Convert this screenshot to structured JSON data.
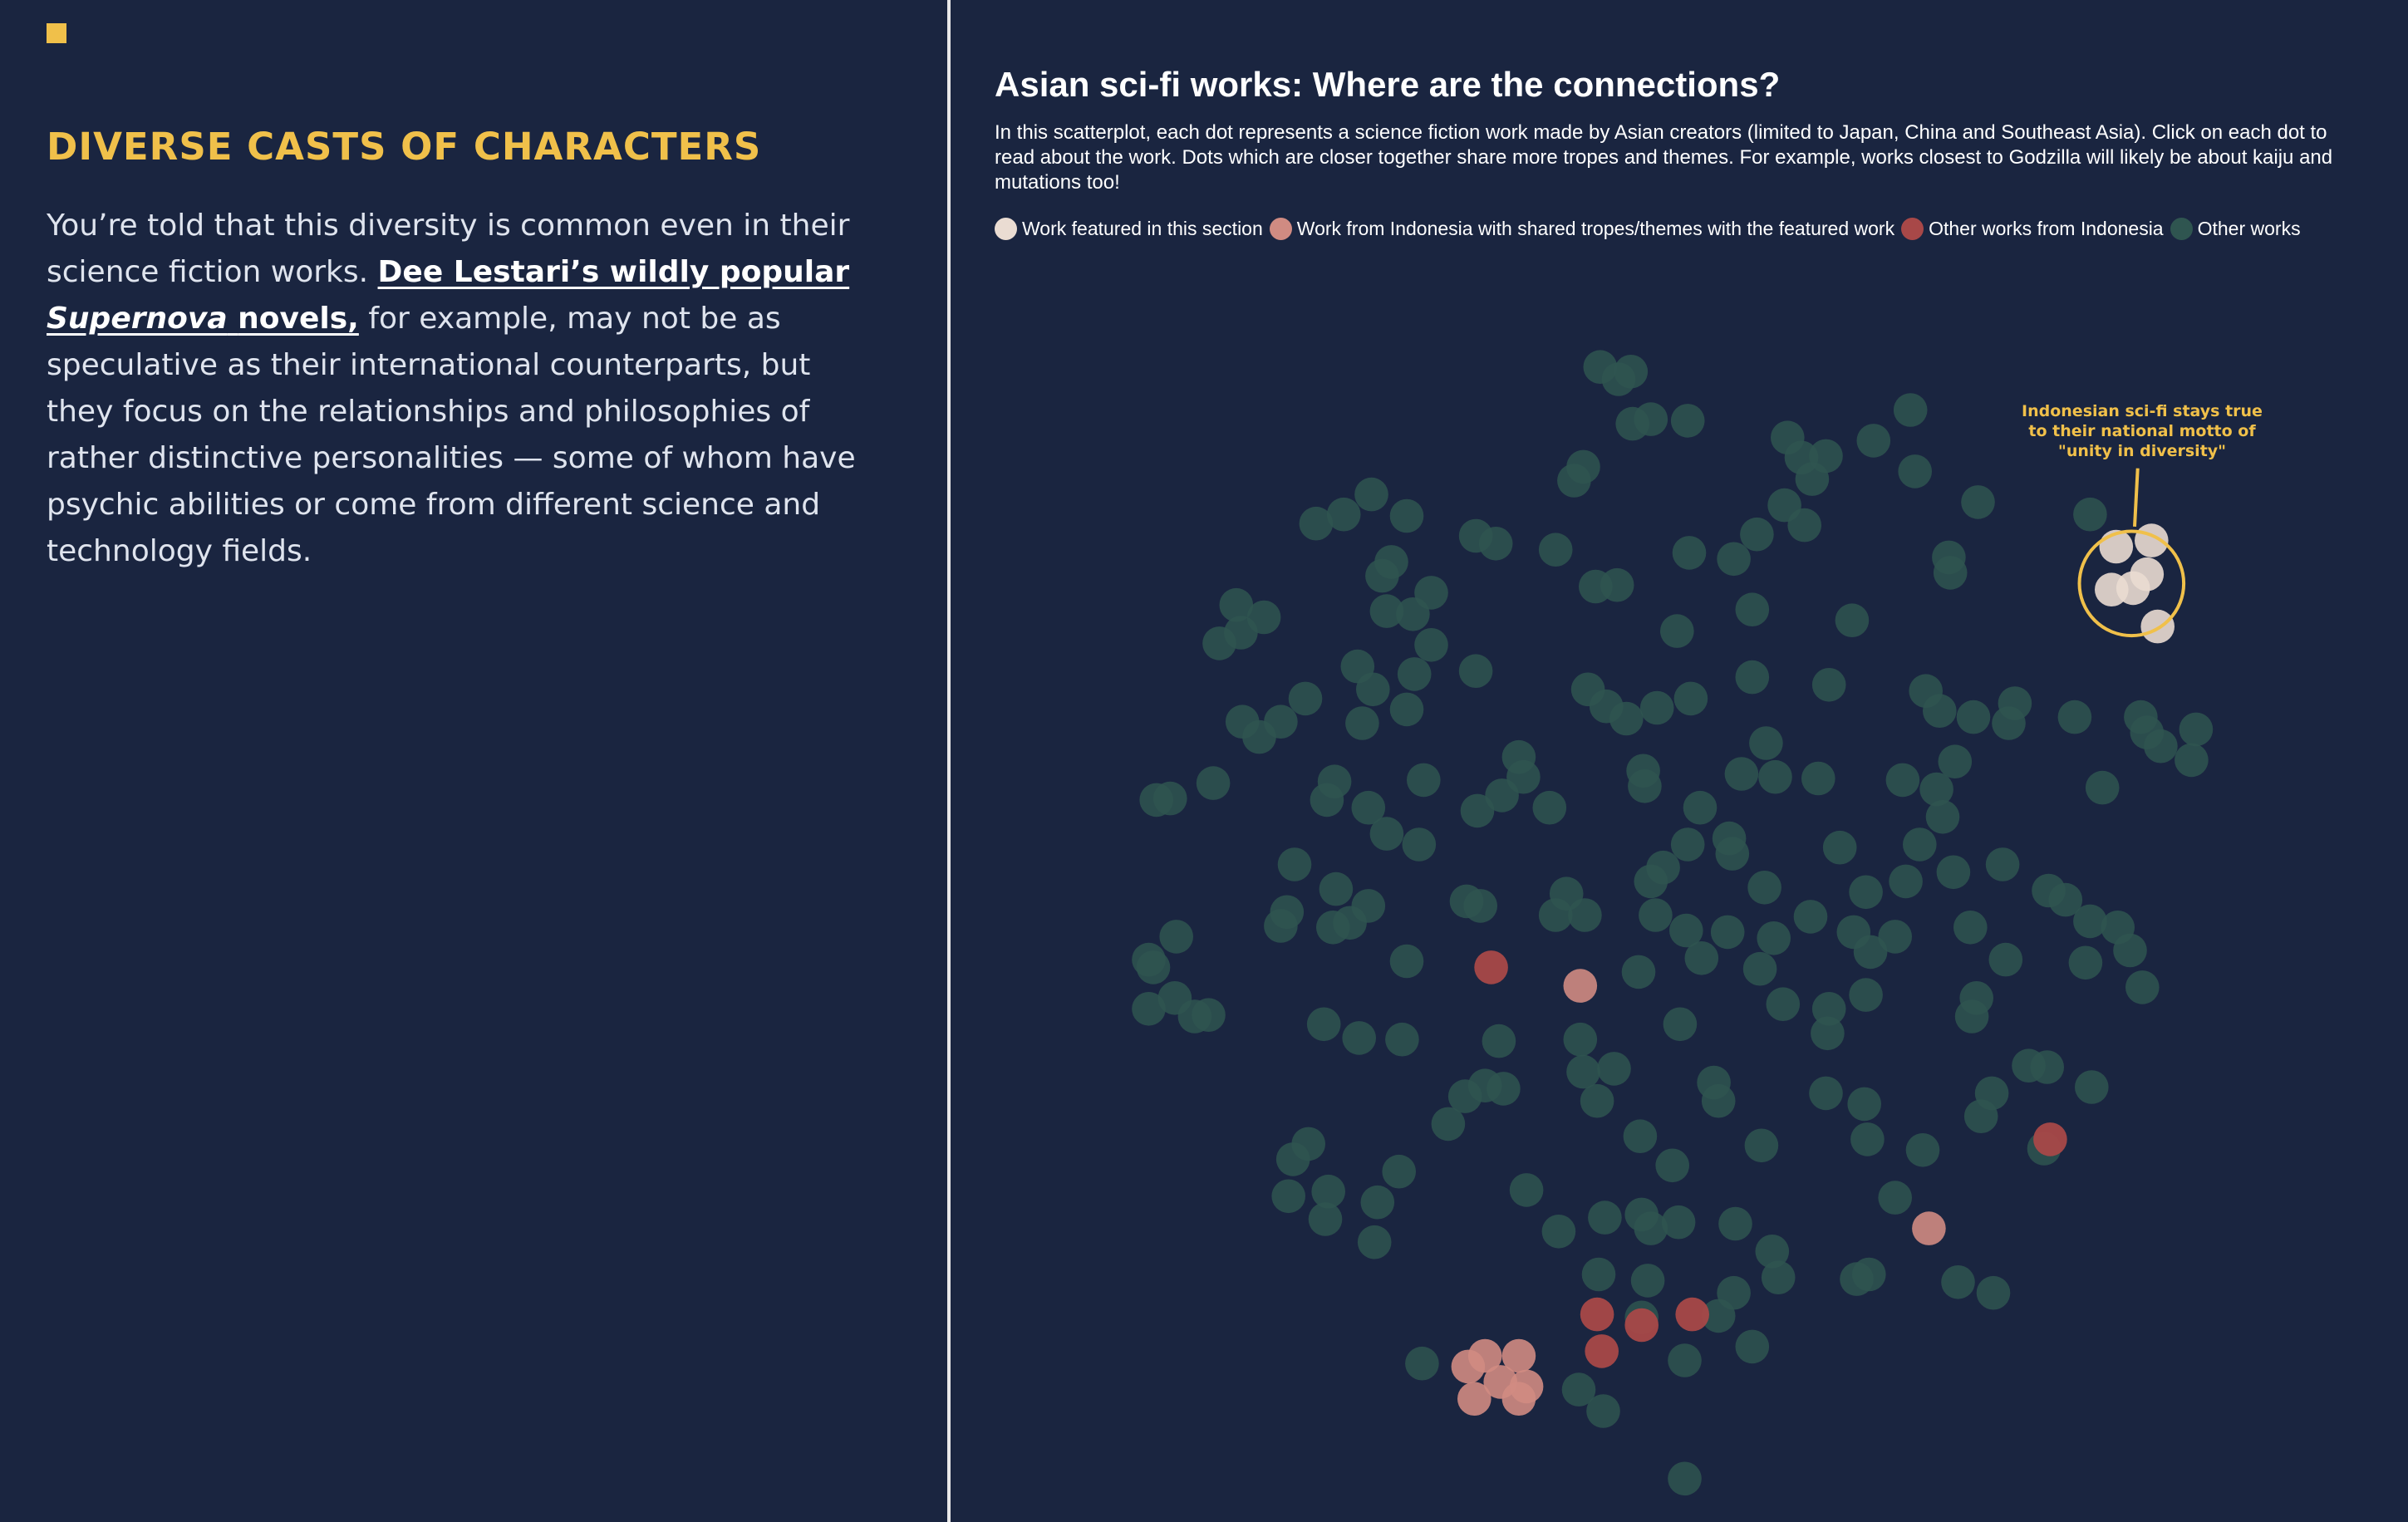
{
  "left": {
    "heading": "DIVERSE CASTS OF CHARACTERS",
    "para_intro": "You’re told that this diversity is common even in their science fiction works.",
    "link_name": "Dee Lestari’s wildly popular",
    "link_title": "Supernova",
    "link_suffix": "novels,",
    "para_rest": "for example, may not be as speculative as their international counterparts, but they focus on the relationships and philosophies of rather distinctive personalities — some of whom have psychic abilities or come from different science and technology fields."
  },
  "colors": {
    "background": "#1a2540",
    "accent": "#f0c04a",
    "featured": "#eadcd2",
    "shared": "#d08b82",
    "indonesia": "#a84848",
    "other": "#2f5550"
  },
  "chart_data": {
    "type": "scatter",
    "title": "Asian sci-fi works: Where are the connections?",
    "subtitle": "In this scatterplot, each dot represents a science fiction work made by Asian creators (limited to Japan, China and Southeast Asia). Click on each dot to read about the work. Dots which are closer together share more tropes and themes. For example, works closest to Godzilla will likely be about kaiju and mutations too!",
    "legend": [
      {
        "key": "featured",
        "label": "Work featured in this section",
        "color": "#eadcd2"
      },
      {
        "key": "shared",
        "label": "Work from Indonesia with shared tropes/themes with the featured work",
        "color": "#d08b82"
      },
      {
        "key": "indonesia",
        "label": "Other works from Indonesia",
        "color": "#a84848"
      },
      {
        "key": "other",
        "label": "Other works",
        "color": "#2f5550"
      }
    ],
    "annotation": "Indonesian sci-fi stays true to their national motto of \"unity in diversity\"",
    "axes": "none",
    "xlim": [
      0,
      1754
    ],
    "ylim": [
      0,
      1832
    ],
    "series": [
      {
        "key": "featured",
        "points": [
          [
            1401,
            352
          ],
          [
            1378,
            356
          ],
          [
            1398,
            374
          ],
          [
            1389,
            383
          ],
          [
            1375,
            384
          ],
          [
            1405,
            408
          ]
        ]
      },
      {
        "key": "shared",
        "points": [
          [
            1029,
            642
          ],
          [
            1256,
            800
          ],
          [
            967,
            883
          ],
          [
            989,
            883
          ],
          [
            956,
            890
          ],
          [
            977,
            900
          ],
          [
            994,
            903
          ],
          [
            989,
            911
          ],
          [
            960,
            911
          ]
        ]
      },
      {
        "key": "indonesia",
        "points": [
          [
            971,
            630
          ],
          [
            1335,
            742
          ],
          [
            1040,
            856
          ],
          [
            1102,
            856
          ],
          [
            1069,
            863
          ],
          [
            1043,
            880
          ]
        ]
      },
      {
        "key": "other",
        "points": [
          [
            1042,
            239
          ],
          [
            1062,
            242
          ],
          [
            1054,
            247
          ],
          [
            1244,
            267
          ],
          [
            1075,
            273
          ],
          [
            1099,
            274
          ],
          [
            1063,
            276
          ],
          [
            1164,
            285
          ],
          [
            1220,
            287
          ],
          [
            1173,
            298
          ],
          [
            1189,
            297
          ],
          [
            1031,
            304
          ],
          [
            1247,
            307
          ],
          [
            1180,
            312
          ],
          [
            1025,
            313
          ],
          [
            893,
            322
          ],
          [
            1288,
            327
          ],
          [
            875,
            335
          ],
          [
            916,
            336
          ],
          [
            1361,
            335
          ],
          [
            1162,
            329
          ],
          [
            857,
            341
          ],
          [
            1175,
            342
          ],
          [
            1144,
            348
          ],
          [
            961,
            349
          ],
          [
            974,
            354
          ],
          [
            1013,
            358
          ],
          [
            1100,
            360
          ],
          [
            1129,
            364
          ],
          [
            1269,
            363
          ],
          [
            906,
            366
          ],
          [
            900,
            375
          ],
          [
            1270,
            373
          ],
          [
            1039,
            382
          ],
          [
            1053,
            381
          ],
          [
            932,
            386
          ],
          [
            805,
            394
          ],
          [
            903,
            398
          ],
          [
            920,
            400
          ],
          [
            1141,
            397
          ],
          [
            823,
            402
          ],
          [
            1206,
            404
          ],
          [
            1092,
            411
          ],
          [
            808,
            412
          ],
          [
            794,
            419
          ],
          [
            932,
            420
          ],
          [
            884,
            434
          ],
          [
            921,
            439
          ],
          [
            961,
            437
          ],
          [
            1141,
            441
          ],
          [
            1191,
            446
          ],
          [
            1034,
            449
          ],
          [
            1101,
            455
          ],
          [
            894,
            449
          ],
          [
            1254,
            450
          ],
          [
            850,
            455
          ],
          [
            1046,
            460
          ],
          [
            1079,
            461
          ],
          [
            1059,
            468
          ],
          [
            1263,
            463
          ],
          [
            1312,
            458
          ],
          [
            1285,
            467
          ],
          [
            1308,
            471
          ],
          [
            1351,
            467
          ],
          [
            1394,
            467
          ],
          [
            887,
            471
          ],
          [
            916,
            462
          ],
          [
            809,
            470
          ],
          [
            834,
            470
          ],
          [
            820,
            480
          ],
          [
            1398,
            477
          ],
          [
            1430,
            475
          ],
          [
            1407,
            486
          ],
          [
            1427,
            495
          ],
          [
            1150,
            484
          ],
          [
            1273,
            496
          ],
          [
            989,
            493
          ],
          [
            1070,
            502
          ],
          [
            1134,
            504
          ],
          [
            1156,
            506
          ],
          [
            1184,
            507
          ],
          [
            1239,
            508
          ],
          [
            1261,
            514
          ],
          [
            1071,
            512
          ],
          [
            790,
            510
          ],
          [
            869,
            509
          ],
          [
            927,
            508
          ],
          [
            992,
            506
          ],
          [
            1369,
            513
          ],
          [
            762,
            520
          ],
          [
            753,
            521
          ],
          [
            978,
            518
          ],
          [
            864,
            521
          ],
          [
            891,
            526
          ],
          [
            962,
            528
          ],
          [
            1009,
            526
          ],
          [
            1107,
            526
          ],
          [
            1265,
            532
          ],
          [
            903,
            543
          ],
          [
            924,
            550
          ],
          [
            1126,
            546
          ],
          [
            1099,
            550
          ],
          [
            1128,
            556
          ],
          [
            1198,
            552
          ],
          [
            1250,
            550
          ],
          [
            843,
            563
          ],
          [
            1083,
            565
          ],
          [
            1272,
            568
          ],
          [
            1304,
            563
          ],
          [
            1075,
            574
          ],
          [
            1149,
            578
          ],
          [
            1241,
            574
          ],
          [
            870,
            579
          ],
          [
            1020,
            582
          ],
          [
            1215,
            581
          ],
          [
            1334,
            580
          ],
          [
            1345,
            586
          ],
          [
            955,
            587
          ],
          [
            964,
            590
          ],
          [
            1013,
            596
          ],
          [
            1032,
            596
          ],
          [
            838,
            594
          ],
          [
            891,
            590
          ],
          [
            1078,
            596
          ],
          [
            1179,
            597
          ],
          [
            1361,
            600
          ],
          [
            834,
            603
          ],
          [
            879,
            601
          ],
          [
            868,
            604
          ],
          [
            1098,
            606
          ],
          [
            1125,
            607
          ],
          [
            1155,
            611
          ],
          [
            1207,
            607
          ],
          [
            1283,
            604
          ],
          [
            1234,
            610
          ],
          [
            1379,
            604
          ],
          [
            1218,
            620
          ],
          [
            1387,
            619
          ],
          [
            766,
            610
          ],
          [
            748,
            625
          ],
          [
            751,
            630
          ],
          [
            916,
            626
          ],
          [
            1108,
            624
          ],
          [
            1146,
            631
          ],
          [
            1306,
            625
          ],
          [
            1358,
            627
          ],
          [
            1067,
            633
          ],
          [
            1395,
            643
          ],
          [
            765,
            650
          ],
          [
            1215,
            648
          ],
          [
            1287,
            650
          ],
          [
            748,
            657
          ],
          [
            778,
            662
          ],
          [
            787,
            661
          ],
          [
            1161,
            654
          ],
          [
            1191,
            657
          ],
          [
            1284,
            662
          ],
          [
            1094,
            667
          ],
          [
            862,
            667
          ],
          [
            885,
            676
          ],
          [
            913,
            677
          ],
          [
            976,
            678
          ],
          [
            1029,
            677
          ],
          [
            1190,
            673
          ],
          [
            1031,
            698
          ],
          [
            1051,
            696
          ],
          [
            1116,
            705
          ],
          [
            1119,
            717
          ],
          [
            967,
            707
          ],
          [
            979,
            709
          ],
          [
            1189,
            712
          ],
          [
            1321,
            694
          ],
          [
            1333,
            695
          ],
          [
            1362,
            708
          ],
          [
            954,
            714
          ],
          [
            1040,
            717
          ],
          [
            1214,
            719
          ],
          [
            1297,
            712
          ],
          [
            1290,
            727
          ],
          [
            943,
            732
          ],
          [
            1068,
            740
          ],
          [
            1147,
            746
          ],
          [
            1216,
            742
          ],
          [
            1252,
            749
          ],
          [
            1331,
            748
          ],
          [
            852,
            745
          ],
          [
            842,
            755
          ],
          [
            1089,
            759
          ],
          [
            911,
            763
          ],
          [
            994,
            775
          ],
          [
            839,
            779
          ],
          [
            865,
            776
          ],
          [
            897,
            783
          ],
          [
            1234,
            780
          ],
          [
            863,
            794
          ],
          [
            1045,
            793
          ],
          [
            1069,
            791
          ],
          [
            1075,
            800
          ],
          [
            1093,
            796
          ],
          [
            1130,
            797
          ],
          [
            1015,
            802
          ],
          [
            895,
            809
          ],
          [
            1154,
            815
          ],
          [
            1158,
            832
          ],
          [
            1209,
            833
          ],
          [
            1217,
            830
          ],
          [
            1275,
            835
          ],
          [
            1298,
            842
          ],
          [
            1041,
            830
          ],
          [
            1073,
            834
          ],
          [
            1129,
            842
          ],
          [
            1069,
            858
          ],
          [
            1119,
            857
          ],
          [
            1141,
            877
          ],
          [
            1097,
            886
          ],
          [
            926,
            888
          ],
          [
            1028,
            905
          ],
          [
            1044,
            919
          ],
          [
            1097,
            963
          ]
        ]
      }
    ],
    "highlight_circle": {
      "cx": 1388,
      "cy": 380,
      "r": 34
    }
  }
}
